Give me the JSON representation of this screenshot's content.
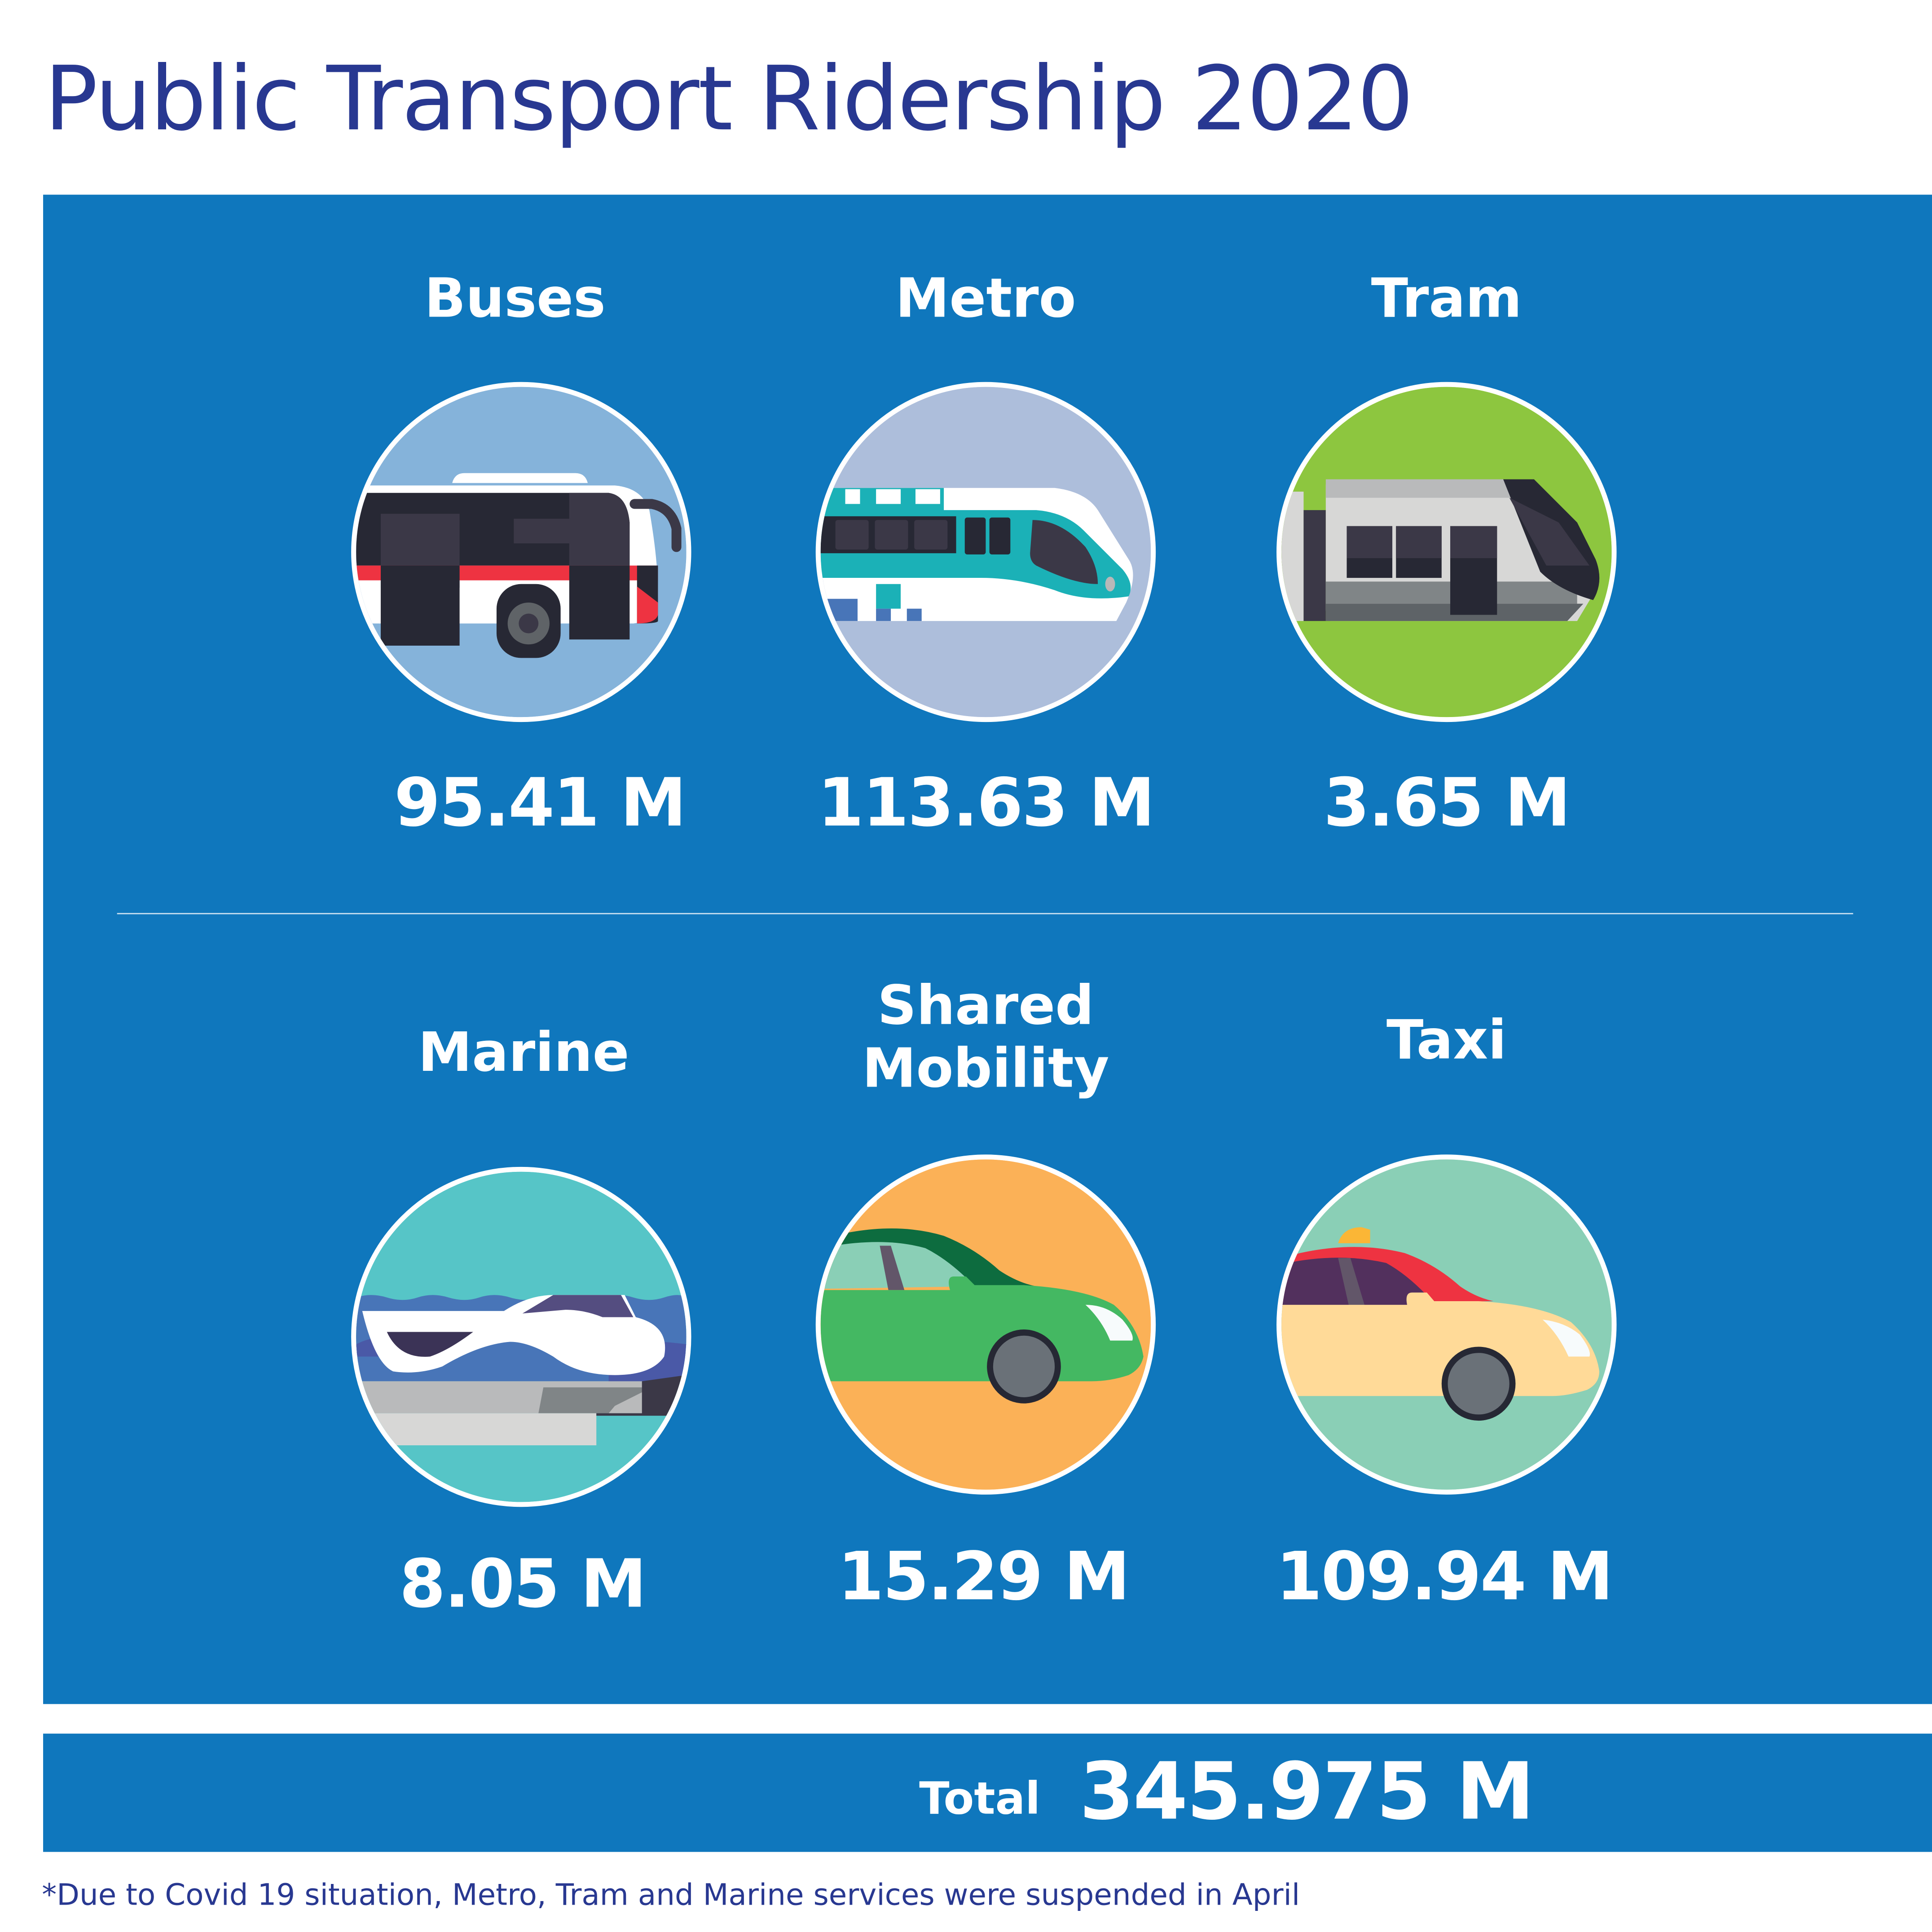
{
  "title": "Public Transport Ridership 2020",
  "modes": [
    {
      "label": "Buses",
      "value": "95.41 M",
      "icon": "bus-icon",
      "bg_color": "#85b3da"
    },
    {
      "label": "Metro",
      "value": "113.63 M",
      "icon": "metro-train-icon",
      "bg_color": "#adbedb"
    },
    {
      "label": "Tram",
      "value": "3.65 M",
      "icon": "tram-icon",
      "bg_color": "#8dc63f"
    },
    {
      "label": "Marine",
      "value": "8.05 M",
      "icon": "boat-icon",
      "bg_color": "#56c5c7"
    },
    {
      "label": "Shared Mobility",
      "value": "15.29 M",
      "icon": "car-icon",
      "bg_color": "#fbb157"
    },
    {
      "label": "Taxi",
      "value": "109.94 M",
      "icon": "taxi-icon",
      "bg_color": "#8acfb6"
    }
  ],
  "total": {
    "label": "Total",
    "value": "345.975 M"
  },
  "footnote": "*Due to Covid 19 situation, Metro, Tram and Marine services were suspended in April",
  "colors": {
    "panel": "#0f77bd",
    "title": "#283891"
  },
  "chart_data": {
    "type": "table",
    "title": "Public Transport Ridership 2020",
    "unit": "million riders",
    "categories": [
      "Buses",
      "Metro",
      "Tram",
      "Marine",
      "Shared Mobility",
      "Taxi"
    ],
    "values": [
      95.41,
      113.63,
      3.65,
      8.05,
      15.29,
      109.94
    ],
    "total": 345.975
  }
}
